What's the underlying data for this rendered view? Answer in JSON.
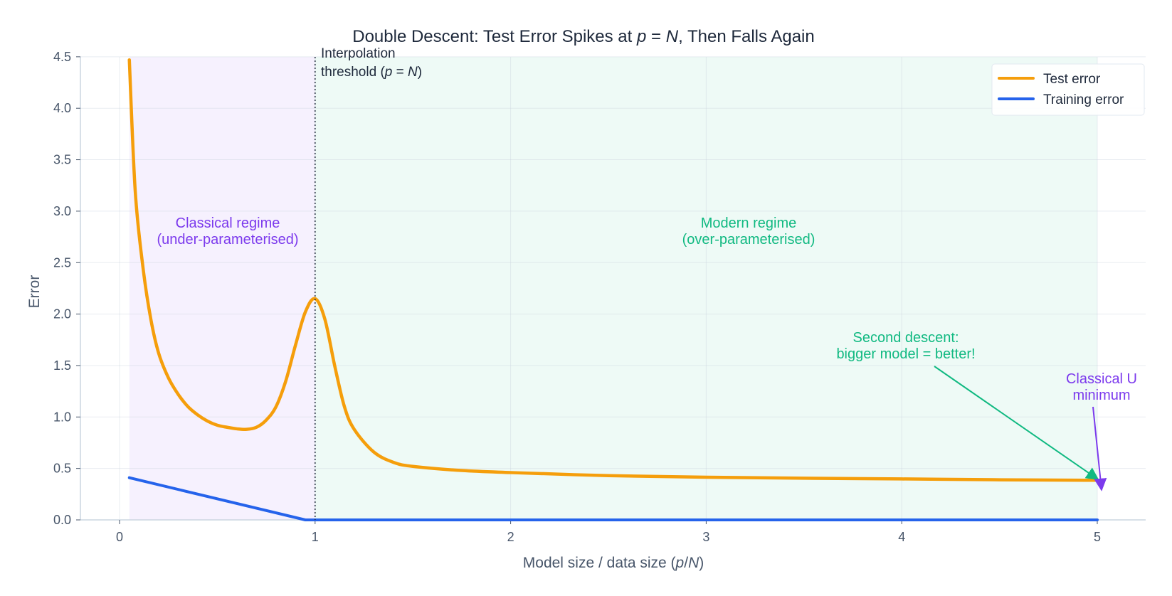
{
  "chart_data": {
    "type": "line",
    "title": "Double Descent: Test Error Spikes at p = N, Then Falls Again",
    "title_parts": {
      "pre": "Double Descent: Test Error Spikes at ",
      "p": "p",
      "eq": " = ",
      "N": "N",
      "post": ", Then Falls Again"
    },
    "xlabel": "Model size  /  data size   (p/N)",
    "xlabel_parts": {
      "pre": "Model size  /  data size   (",
      "p": "p",
      "slash": "/",
      "N": "N",
      "post": ")"
    },
    "ylabel": "Error",
    "xlim": [
      -0.2,
      5.25
    ],
    "ylim": [
      0,
      4.5
    ],
    "xticks": [
      0,
      1,
      2,
      3,
      4,
      5
    ],
    "yticks": [
      "0.0",
      "0.5",
      "1.0",
      "1.5",
      "2.0",
      "2.5",
      "3.0",
      "3.5",
      "4.0",
      "4.5"
    ],
    "grid": true,
    "legend_position": "upper right",
    "series": [
      {
        "name": "Test error",
        "color": "#f59e0b",
        "x": [
          0.05,
          0.08,
          0.12,
          0.16,
          0.2,
          0.25,
          0.3,
          0.35,
          0.4,
          0.45,
          0.5,
          0.55,
          0.6,
          0.65,
          0.7,
          0.75,
          0.8,
          0.85,
          0.9,
          0.95,
          1.0,
          1.05,
          1.1,
          1.15,
          1.2,
          1.3,
          1.4,
          1.5,
          1.75,
          2.0,
          2.5,
          3.0,
          3.5,
          4.0,
          4.5,
          5.0
        ],
        "values": [
          4.47,
          3.2,
          2.45,
          1.95,
          1.62,
          1.38,
          1.22,
          1.1,
          1.02,
          0.96,
          0.92,
          0.9,
          0.885,
          0.88,
          0.9,
          0.97,
          1.1,
          1.35,
          1.7,
          2.02,
          2.15,
          1.95,
          1.5,
          1.1,
          0.88,
          0.66,
          0.56,
          0.52,
          0.48,
          0.46,
          0.43,
          0.415,
          0.405,
          0.398,
          0.39,
          0.385
        ]
      },
      {
        "name": "Training error",
        "color": "#2563eb",
        "x": [
          0.05,
          0.95,
          1.0,
          5.0
        ],
        "values": [
          0.41,
          0.0,
          0.0,
          0.0
        ]
      }
    ],
    "regions": [
      {
        "name": "classical",
        "x": [
          0.05,
          1.0
        ],
        "color": "#7c3aed"
      },
      {
        "name": "modern",
        "x": [
          1.0,
          5.0
        ],
        "color": "#10b981"
      }
    ],
    "vline": {
      "x": 1.0,
      "label_line1": "Interpolation",
      "label_line2_pre": "threshold  (",
      "label_p": "p",
      "label_eq": " = ",
      "label_N": "N",
      "label_post": ")"
    },
    "annotations": [
      {
        "id": "classical",
        "lines": [
          "Classical regime",
          "(under-parameterised)"
        ],
        "color": "#7c3aed",
        "x": 0.55,
        "y": 2.85
      },
      {
        "id": "modern",
        "lines": [
          "Modern regime",
          "(over-parameterised)"
        ],
        "color": "#10b981",
        "x": 3.2,
        "y": 2.85
      },
      {
        "id": "second-descent",
        "lines": [
          "Second descent:",
          "bigger model = better!"
        ],
        "color": "#10b981",
        "x": 4.0,
        "y": 1.75,
        "arrow_to": [
          5.0,
          0.4
        ]
      },
      {
        "id": "classical-u",
        "lines": [
          "Classical U",
          "minimum"
        ],
        "color": "#7c3aed",
        "x": 5.0,
        "y": 1.3,
        "arrow_to": [
          5.0,
          0.3
        ]
      }
    ]
  },
  "legend": {
    "items": [
      {
        "label": "Test error",
        "color": "#f59e0b"
      },
      {
        "label": "Training error",
        "color": "#2563eb"
      }
    ]
  }
}
